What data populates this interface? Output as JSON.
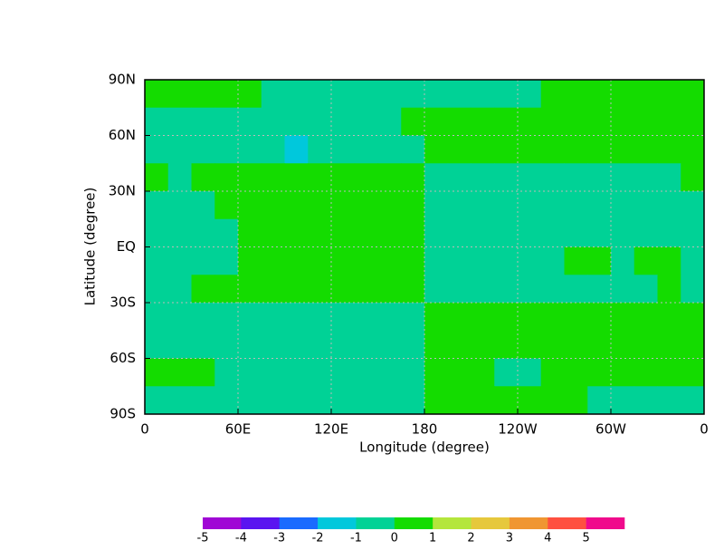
{
  "chart_data": {
    "type": "contour",
    "xlabel": "Longitude  (degree)",
    "ylabel": "Latitude  (degree)",
    "xlim": [
      0,
      360
    ],
    "ylim": [
      -90,
      90
    ],
    "xticks": [
      0,
      {
        "value": 60,
        "label": "60E"
      },
      {
        "value": 120,
        "label": "120E"
      },
      180,
      {
        "value": 240,
        "label": "120W"
      },
      {
        "value": 300,
        "label": "60W"
      },
      {
        "value": 360,
        "label": "0"
      }
    ],
    "yticks": [
      {
        "value": -90,
        "label": "90S"
      },
      {
        "value": -60,
        "label": "60S"
      },
      {
        "value": -30,
        "label": "30S"
      },
      {
        "value": 0,
        "label": "EQ"
      },
      {
        "value": 30,
        "label": "30N"
      },
      {
        "value": 60,
        "label": "60N"
      },
      {
        "value": 90,
        "label": "90N"
      }
    ],
    "grid": true,
    "levels": [
      -5,
      -4,
      -3,
      -2,
      -1,
      0,
      1,
      2,
      3,
      4,
      5
    ],
    "colors": [
      "#a007d5",
      "#5a14f0",
      "#1a6bff",
      "#00c8dc",
      "#00d296",
      "#14dc00",
      "#b4e63c",
      "#e6c83c",
      "#f09632",
      "#ff5040",
      "#f00a8c"
    ],
    "z": [
      [
        0.5,
        0.5,
        0.5,
        0.5,
        0.5,
        -0.5,
        -0.5,
        -0.5,
        -0.5,
        -0.5,
        -0.5,
        -0.5,
        -0.5,
        -0.5,
        -0.5,
        -0.5,
        -0.5,
        0.5,
        0.5,
        0.5,
        0.5,
        0.5,
        0.5,
        0.5
      ],
      [
        -0.5,
        -0.5,
        -0.5,
        -0.5,
        -0.5,
        -0.5,
        -0.5,
        -0.5,
        -0.5,
        -0.5,
        -0.5,
        0.5,
        0.5,
        0.5,
        0.5,
        0.5,
        0.5,
        0.5,
        0.5,
        0.5,
        0.5,
        0.5,
        0.5,
        0.5
      ],
      [
        -0.5,
        -0.5,
        -0.5,
        -0.5,
        -0.5,
        -0.5,
        -1.5,
        -0.5,
        -0.5,
        -0.5,
        -0.5,
        -0.5,
        0.5,
        0.5,
        0.5,
        0.5,
        0.5,
        0.5,
        0.5,
        0.5,
        0.5,
        0.5,
        0.5,
        0.5
      ],
      [
        0.5,
        -0.5,
        0.5,
        0.5,
        0.5,
        0.5,
        0.5,
        0.5,
        0.5,
        0.5,
        0.5,
        0.5,
        -0.5,
        -0.5,
        -0.5,
        -0.5,
        -0.5,
        -0.5,
        -0.5,
        -0.5,
        -0.5,
        -0.5,
        -0.5,
        0.5
      ],
      [
        -0.5,
        -0.5,
        -0.5,
        0.5,
        0.5,
        0.5,
        0.5,
        0.5,
        0.5,
        0.5,
        0.5,
        0.5,
        -0.5,
        -0.5,
        -0.5,
        -0.5,
        -0.5,
        -0.5,
        -0.5,
        -0.5,
        -0.5,
        -0.5,
        -0.5,
        -0.5
      ],
      [
        -0.5,
        -0.5,
        -0.5,
        -0.5,
        0.5,
        0.5,
        0.5,
        0.5,
        0.5,
        0.5,
        0.5,
        0.5,
        -0.5,
        -0.5,
        -0.5,
        -0.5,
        -0.5,
        -0.5,
        -0.5,
        -0.5,
        -0.5,
        -0.5,
        -0.5,
        -0.5
      ],
      [
        -0.5,
        -0.5,
        -0.5,
        -0.5,
        0.5,
        0.5,
        0.5,
        0.5,
        0.5,
        0.5,
        0.5,
        0.5,
        -0.5,
        -0.5,
        -0.5,
        -0.5,
        -0.5,
        -0.5,
        0.5,
        0.5,
        -0.5,
        0.5,
        0.5,
        -0.5
      ],
      [
        -0.5,
        -0.5,
        0.5,
        0.5,
        0.5,
        0.5,
        0.5,
        0.5,
        0.5,
        0.5,
        0.5,
        0.5,
        -0.5,
        -0.5,
        -0.5,
        -0.5,
        -0.5,
        -0.5,
        -0.5,
        -0.5,
        -0.5,
        -0.5,
        0.5,
        -0.5
      ],
      [
        -0.5,
        -0.5,
        -0.5,
        -0.5,
        -0.5,
        -0.5,
        -0.5,
        -0.5,
        -0.5,
        -0.5,
        -0.5,
        -0.5,
        0.5,
        0.5,
        0.5,
        0.5,
        0.5,
        0.5,
        0.5,
        0.5,
        0.5,
        0.5,
        0.5,
        0.5
      ],
      [
        -0.5,
        -0.5,
        -0.5,
        -0.5,
        -0.5,
        -0.5,
        -0.5,
        -0.5,
        -0.5,
        -0.5,
        -0.5,
        -0.5,
        0.5,
        0.5,
        0.5,
        0.5,
        0.5,
        0.5,
        0.5,
        0.5,
        0.5,
        0.5,
        0.5,
        0.5
      ],
      [
        0.5,
        0.5,
        0.5,
        -0.5,
        -0.5,
        -0.5,
        -0.5,
        -0.5,
        -0.5,
        -0.5,
        -0.5,
        -0.5,
        0.5,
        0.5,
        0.5,
        -0.5,
        -0.5,
        0.5,
        0.5,
        0.5,
        0.5,
        0.5,
        0.5,
        0.5
      ],
      [
        -0.5,
        -0.5,
        -0.5,
        -0.5,
        -0.5,
        -0.5,
        -0.5,
        -0.5,
        -0.5,
        -0.5,
        -0.5,
        -0.5,
        0.5,
        0.5,
        0.5,
        0.5,
        0.5,
        0.5,
        0.5,
        -0.5,
        -0.5,
        -0.5,
        -0.5,
        -0.5
      ]
    ]
  }
}
